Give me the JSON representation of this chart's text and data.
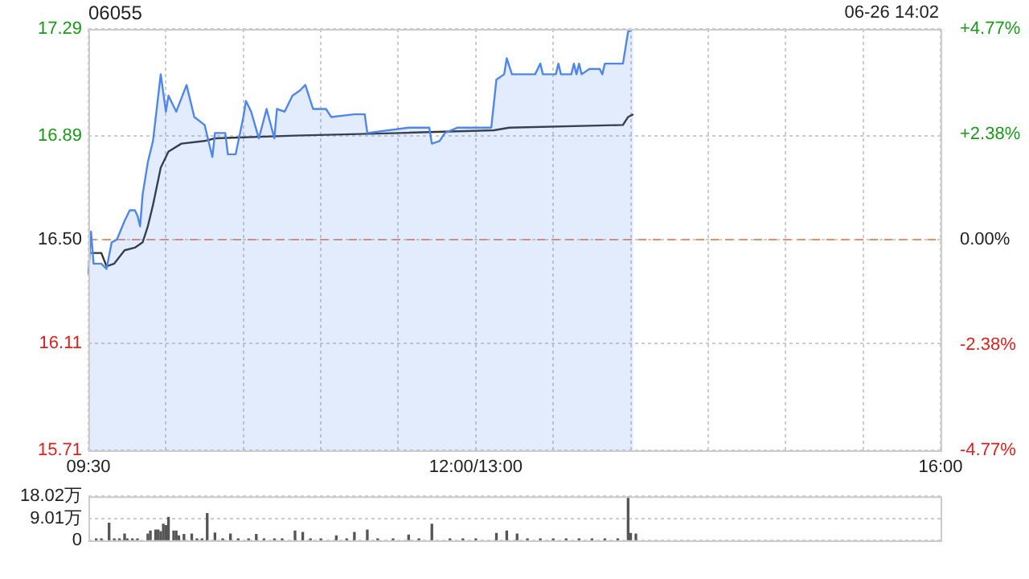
{
  "chart_data": [
    {
      "type": "line",
      "title": "06055",
      "annotations": [
        "06-26 14:02"
      ],
      "categories": [
        "09:30",
        null,
        null,
        null,
        null,
        null,
        null,
        null,
        null,
        null,
        null,
        null,
        null,
        null,
        null,
        null,
        null,
        null,
        null,
        null,
        null,
        null,
        null,
        null,
        null,
        null,
        null,
        null,
        null,
        null,
        null,
        null,
        null,
        null,
        null,
        null,
        null,
        null,
        null,
        null,
        null,
        null,
        null,
        null,
        null,
        null,
        null,
        null,
        null,
        null,
        null,
        null,
        null,
        null,
        null,
        null,
        null,
        null,
        null,
        null,
        null,
        null,
        null,
        null,
        null,
        null,
        null,
        null,
        null,
        null,
        null,
        null,
        null,
        null,
        null,
        null,
        null,
        null,
        null,
        null,
        null,
        null,
        null,
        null,
        null,
        null,
        null,
        null,
        null,
        null,
        null,
        null,
        null,
        null,
        null,
        null,
        null,
        null,
        null,
        null,
        null,
        null,
        null,
        null,
        null,
        null,
        null,
        null,
        null,
        null,
        null,
        null,
        null,
        null,
        null,
        null,
        null,
        null,
        null,
        null,
        null,
        null,
        null,
        null,
        null,
        null,
        null,
        null,
        null,
        null,
        null,
        null,
        null,
        null,
        null,
        null,
        null,
        null,
        null,
        null,
        null,
        null,
        null,
        null,
        null,
        null,
        null,
        null,
        null,
        null,
        "12:00/13:00",
        null,
        null,
        null,
        null,
        null,
        null,
        null,
        null,
        null,
        null,
        null,
        null,
        null,
        null,
        null,
        null,
        null,
        null,
        null,
        null,
        null,
        null,
        null,
        null,
        null,
        null,
        null,
        null,
        null,
        null,
        null,
        null,
        null,
        null,
        null,
        null,
        null,
        null,
        null,
        null,
        null,
        null,
        null,
        null,
        null,
        null,
        null,
        null,
        null,
        null,
        null,
        null,
        null,
        null,
        null,
        null,
        null,
        null,
        null,
        null,
        null,
        null,
        null,
        null,
        null,
        null,
        null,
        null,
        null,
        null,
        null,
        null,
        null,
        null,
        null,
        null,
        null,
        null,
        null,
        null,
        null,
        null,
        null,
        null,
        null,
        null,
        null,
        null,
        null,
        null,
        null,
        null,
        null,
        null,
        null,
        null,
        null,
        null,
        null,
        null,
        null,
        null,
        null,
        null,
        null,
        null,
        null,
        null,
        null,
        null,
        null,
        null,
        null,
        null,
        null,
        null,
        null,
        null,
        null,
        null,
        null,
        null,
        null,
        null,
        null,
        null,
        null,
        null,
        null,
        null,
        null,
        null,
        null,
        null,
        null,
        null,
        null,
        null,
        null,
        null,
        null,
        null,
        null,
        null,
        null,
        null,
        null,
        null,
        null,
        null,
        null,
        null,
        null,
        null,
        null,
        null,
        null,
        null,
        null,
        null,
        null,
        null,
        null,
        null,
        null,
        null,
        null,
        null,
        null,
        null,
        null,
        null,
        null,
        null,
        null,
        null,
        null,
        null,
        null,
        "16:00"
      ],
      "ylim": [
        15.71,
        17.29
      ],
      "yticks": [
        15.71,
        16.11,
        {
          "value": 16.5,
          "label": "16.50"
        },
        16.89,
        17.29
      ],
      "y2lim": [
        -4.77,
        4.77
      ],
      "y2ticks": [
        {
          "value": -4.77,
          "label": "-4.77%"
        },
        {
          "value": -2.38,
          "label": "-2.38%"
        },
        {
          "value": 0,
          "label": "0.00%"
        },
        {
          "value": 2.38,
          "label": "+2.38%"
        },
        {
          "value": 4.77,
          "label": "+4.77%"
        }
      ],
      "grid": true,
      "ref_lines": [
        {
          "axis": "y",
          "value": 16.5,
          "color": "#e8906a",
          "line_style": "dashed"
        }
      ],
      "series": [
        {
          "type": "area",
          "color": "#4f86ec",
          "values": [
            16.37,
            16.53,
            16.41,
            null,
            null,
            16.41,
            null,
            16.39,
            null,
            16.49,
            null,
            16.5,
            null,
            null,
            16.57,
            null,
            16.61,
            null,
            16.61,
            16.59,
            16.55,
            16.67,
            null,
            16.79,
            null,
            16.87,
            null,
            null,
            17.12,
            null,
            16.98,
            17.04,
            null,
            null,
            16.98,
            null,
            null,
            null,
            17.08,
            null,
            null,
            16.96,
            null,
            null,
            null,
            16.93,
            null,
            null,
            16.81,
            16.9,
            null,
            null,
            null,
            16.9,
            16.82,
            null,
            null,
            16.82,
            null,
            null,
            16.96,
            17.02,
            null,
            16.98,
            null,
            null,
            16.88,
            null,
            null,
            16.99,
            null,
            null,
            16.88,
            16.99,
            null,
            null,
            16.98,
            null,
            null,
            17.04,
            null,
            null,
            17.06,
            null,
            17.08,
            null,
            null,
            16.99,
            null,
            null,
            null,
            null,
            16.99,
            null,
            16.96,
            null,
            null,
            null,
            null,
            null,
            null,
            null,
            null,
            16.97,
            null,
            null,
            null,
            16.97,
            16.9,
            null,
            null,
            null,
            null,
            null,
            null,
            null,
            null,
            null,
            null,
            null,
            null,
            null,
            null,
            null,
            16.92,
            null,
            null,
            null,
            null,
            null,
            null,
            null,
            16.92,
            16.86,
            null,
            null,
            16.87,
            null,
            16.9,
            null,
            null,
            null,
            null,
            16.92,
            null,
            null,
            null,
            null,
            null,
            null,
            null,
            null,
            null,
            null,
            null,
            null,
            16.92,
            null,
            17.1,
            null,
            null,
            17.12,
            17.18,
            null,
            17.12,
            null,
            null,
            null,
            null,
            null,
            null,
            null,
            null,
            17.12,
            null,
            17.16,
            17.12,
            null,
            null,
            null,
            null,
            17.12,
            17.16,
            17.12,
            null,
            null,
            null,
            17.12,
            17.16,
            17.12,
            17.16,
            17.12,
            null,
            null,
            17.14,
            null,
            null,
            null,
            17.14,
            17.12,
            17.16,
            null,
            null,
            null,
            null,
            null,
            null,
            17.16,
            null,
            17.28,
            null,
            17.29,
            null,
            null,
            null,
            null,
            null,
            null,
            null,
            null,
            null,
            null,
            null,
            null,
            null,
            null,
            null,
            null,
            null,
            null,
            null,
            null,
            null,
            null,
            null,
            null,
            null,
            null,
            null,
            null,
            null,
            null,
            null,
            null,
            null,
            null,
            null,
            null,
            null,
            null,
            null,
            null,
            null,
            null,
            null,
            null,
            null,
            null,
            null,
            null,
            null,
            null,
            null,
            null,
            null,
            null,
            null,
            null,
            null,
            null,
            null,
            null,
            null,
            null,
            null,
            null,
            null,
            null,
            null,
            null,
            null,
            null,
            null,
            null,
            null,
            null,
            null,
            null,
            null,
            null,
            null,
            null,
            null,
            null,
            null,
            null,
            null,
            null,
            null,
            null,
            null,
            null,
            null,
            null,
            null,
            null,
            null,
            null,
            null,
            null,
            null,
            null,
            null,
            null,
            null,
            null,
            null,
            null,
            null,
            null,
            null,
            null,
            null,
            null,
            null,
            null,
            null,
            null,
            null,
            null,
            null
          ]
        },
        {
          "type": "line",
          "color": "#333333",
          "values": [
            null,
            16.45,
            null,
            null,
            null,
            16.45,
            null,
            16.4,
            null,
            null,
            16.41,
            null,
            null,
            null,
            16.46,
            null,
            null,
            null,
            16.47,
            null,
            null,
            16.49,
            null,
            16.55,
            null,
            16.63,
            null,
            null,
            16.77,
            null,
            null,
            16.83,
            null,
            null,
            null,
            null,
            16.86,
            null,
            null,
            null,
            null,
            null,
            null,
            null,
            null,
            16.87,
            null,
            null,
            null,
            16.88,
            null,
            null,
            null,
            null,
            null,
            null,
            null,
            null,
            null,
            null,
            null,
            null,
            null,
            null,
            null,
            null,
            null,
            null,
            null,
            null,
            null,
            null,
            null,
            null,
            null,
            null,
            null,
            null,
            null,
            null,
            16.89,
            null,
            null,
            null,
            null,
            null,
            null,
            null,
            null,
            null,
            null,
            null,
            null,
            null,
            null,
            null,
            null,
            null,
            null,
            null,
            null,
            null,
            null,
            null,
            null,
            null,
            null,
            null,
            null,
            null,
            null,
            null,
            null,
            null,
            null,
            null,
            null,
            null,
            null,
            null,
            null,
            16.9,
            null,
            null,
            null,
            null,
            null,
            null,
            null,
            null,
            null,
            null,
            null,
            null,
            null,
            null,
            null,
            null,
            null,
            null,
            null,
            null,
            null,
            null,
            null,
            null,
            null,
            null,
            null,
            null,
            null,
            null,
            null,
            null,
            null,
            null,
            null,
            16.91,
            null,
            null,
            null,
            null,
            null,
            16.92,
            null,
            null,
            null,
            null,
            null,
            null,
            null,
            null,
            null,
            null,
            null,
            null,
            null,
            null,
            null,
            null,
            null,
            null,
            null,
            null,
            null,
            null,
            null,
            null,
            null,
            null,
            null,
            null,
            null,
            null,
            null,
            null,
            null,
            null,
            null,
            null,
            null,
            null,
            null,
            null,
            null,
            null,
            null,
            16.93,
            null,
            16.96,
            null,
            16.97,
            null,
            null,
            null,
            null,
            null,
            null,
            null,
            null,
            null,
            null,
            null,
            null,
            null,
            null,
            null,
            null,
            null,
            null,
            null,
            null,
            null,
            null,
            null,
            null,
            null,
            null,
            null,
            null,
            null,
            null,
            null,
            null,
            null,
            null,
            null,
            null,
            null,
            null,
            null,
            null,
            null,
            null,
            null,
            null,
            null,
            null,
            null,
            null,
            null,
            null,
            null,
            null,
            null,
            null,
            null,
            null,
            null,
            null,
            null,
            null,
            null,
            null,
            null,
            null,
            null,
            null,
            null,
            null,
            null,
            null,
            null,
            null,
            null,
            null,
            null,
            null,
            null,
            null,
            null,
            null,
            null,
            null,
            null,
            null,
            null,
            null,
            null,
            null,
            null,
            null,
            null,
            null,
            null,
            null,
            null,
            null,
            null,
            null,
            null,
            null,
            null,
            null,
            null,
            null,
            null,
            null,
            null,
            null,
            null,
            null,
            null,
            null,
            null,
            null,
            null,
            null,
            null,
            null,
            null
          ]
        }
      ]
    },
    {
      "type": "bar",
      "color": "#555555",
      "categories": [
        null,
        null,
        null,
        null,
        null,
        null,
        null,
        null,
        null,
        null,
        null,
        null,
        null,
        null,
        null,
        null,
        null,
        null,
        null,
        null,
        null,
        null,
        null,
        null,
        null,
        null,
        null,
        null,
        null,
        null,
        null,
        null,
        null,
        null,
        null,
        null,
        null,
        null,
        null,
        null,
        null,
        null,
        null,
        null,
        null,
        null,
        null,
        null,
        null,
        null,
        null,
        null,
        null,
        null,
        null,
        null,
        null,
        null,
        null,
        null,
        null,
        null,
        null,
        null,
        null,
        null,
        null,
        null,
        null,
        null,
        null,
        null,
        null,
        null,
        null,
        null,
        null,
        null,
        null,
        null,
        null,
        null,
        null,
        null,
        null,
        null,
        null,
        null,
        null,
        null,
        null,
        null,
        null,
        null,
        null,
        null,
        null,
        null,
        null,
        null,
        null,
        null,
        null,
        null,
        null,
        null,
        null,
        null,
        null,
        null,
        null,
        null,
        null,
        null,
        null,
        null,
        null,
        null,
        null,
        null,
        null,
        null,
        null,
        null,
        null,
        null,
        null,
        null,
        null,
        null,
        null,
        null,
        null,
        null,
        null,
        null,
        null,
        null,
        null,
        null,
        null,
        null,
        null,
        null,
        null,
        null,
        null,
        null,
        null,
        null,
        null,
        null,
        null,
        null,
        null,
        null,
        null,
        null,
        null,
        null,
        null,
        null,
        null,
        null,
        null,
        null,
        null,
        null,
        null,
        null,
        null,
        null,
        null,
        null,
        null,
        null,
        null,
        null,
        null,
        null,
        null,
        null,
        null,
        null,
        null,
        null,
        null,
        null,
        null,
        null,
        null,
        null,
        null,
        null,
        null,
        null,
        null,
        null,
        null,
        null,
        null,
        null,
        null,
        null,
        null,
        null,
        null,
        null,
        null,
        null,
        null,
        null,
        null,
        null,
        null,
        null,
        null,
        null,
        null,
        null,
        null,
        null,
        null,
        null,
        null,
        null,
        null,
        null,
        null,
        null,
        null,
        null,
        null,
        null,
        null,
        null,
        null,
        null,
        null,
        null,
        null,
        null,
        null,
        null,
        null,
        null,
        null,
        null,
        null,
        null,
        null,
        null,
        null,
        null,
        null,
        null,
        null,
        null,
        null,
        null,
        null,
        null,
        null,
        null,
        null,
        null,
        null,
        null,
        null,
        null,
        null,
        null,
        null,
        null,
        null,
        null,
        null,
        null,
        null,
        null,
        null,
        null,
        null,
        null,
        null,
        null,
        null,
        null,
        null,
        null,
        null,
        null,
        null,
        null,
        null,
        null,
        null,
        null,
        null,
        null,
        null,
        null,
        null,
        null,
        null,
        null,
        null,
        null,
        null,
        null,
        null,
        null,
        null,
        null,
        null,
        null,
        null,
        null,
        null,
        null,
        null,
        null,
        null,
        null,
        null,
        null,
        null,
        null,
        null,
        null,
        null
      ],
      "ylim": [
        0,
        18.02
      ],
      "yticks": [
        0,
        {
          "value": 9.01,
          "label": "9.01万"
        },
        {
          "value": 18.02,
          "label": "18.02万"
        }
      ],
      "grid": "y",
      "tick_labels": "y",
      "values": [
        null,
        null,
        null,
        0.6,
        null,
        0.6,
        null,
        null,
        7.0,
        null,
        0.6,
        null,
        0.6,
        null,
        2.6,
        0.6,
        null,
        0.6,
        null,
        0.6,
        null,
        null,
        null,
        2.6,
        3.8,
        null,
        4.2,
        4.2,
        3.6,
        6.6,
        6.0,
        9.4,
        null,
        3.8,
        3.8,
        1.8,
        null,
        2.4,
        null,
        null,
        2.6,
        null,
        0.6,
        null,
        0.6,
        null,
        11.0,
        null,
        null,
        3.0,
        null,
        null,
        0.6,
        null,
        null,
        2.6,
        null,
        null,
        0.6,
        null,
        null,
        null,
        0.6,
        null,
        null,
        2.4,
        null,
        null,
        0.6,
        null,
        null,
        null,
        0.6,
        null,
        null,
        0.6,
        null,
        null,
        null,
        null,
        3.8,
        null,
        null,
        3.2,
        null,
        null,
        0.6,
        null,
        null,
        null,
        0.6,
        null,
        null,
        null,
        null,
        null,
        1.8,
        null,
        null,
        null,
        0.6,
        null,
        null,
        3.2,
        null,
        null,
        null,
        null,
        4.2,
        null,
        null,
        null,
        0.6,
        null,
        null,
        null,
        null,
        null,
        0.6,
        null,
        null,
        null,
        null,
        null,
        2.2,
        null,
        null,
        null,
        0.6,
        null,
        null,
        null,
        null,
        6.6,
        null,
        null,
        null,
        null,
        null,
        null,
        0.6,
        null,
        null,
        null,
        null,
        0.6,
        null,
        null,
        null,
        null,
        0.6,
        null,
        null,
        null,
        null,
        null,
        null,
        null,
        2.8,
        null,
        null,
        null,
        3.8,
        null,
        null,
        null,
        2.6,
        null,
        null,
        null,
        0.6,
        null,
        null,
        null,
        null,
        0.6,
        null,
        null,
        null,
        null,
        0.6,
        null,
        null,
        null,
        null,
        0.6,
        null,
        null,
        null,
        null,
        0.6,
        null,
        null,
        null,
        null,
        0.6,
        null,
        null,
        null,
        null,
        0.6,
        null,
        null,
        null,
        null,
        0.6,
        null,
        null,
        null,
        18.0,
        2.8,
        null,
        2.6,
        null,
        null,
        null,
        null,
        null,
        null,
        null,
        null,
        null,
        null,
        null,
        null,
        null,
        null,
        null,
        null,
        null,
        null,
        null,
        null,
        null,
        null,
        null,
        null,
        null,
        null,
        null,
        null,
        null,
        null,
        null,
        null,
        null,
        null,
        null,
        null,
        null,
        null,
        null,
        null,
        null,
        null,
        null,
        null,
        null,
        null,
        null,
        null,
        null,
        null,
        null,
        null,
        null,
        null,
        null,
        null,
        null,
        null,
        null,
        null,
        null,
        null,
        null,
        null,
        null,
        null,
        null,
        null,
        null,
        null,
        null,
        null,
        null,
        null,
        null,
        null,
        null,
        null,
        null,
        null,
        null,
        null,
        null,
        null,
        null,
        null,
        null,
        null,
        null,
        null,
        null,
        null,
        null,
        null,
        null,
        null,
        null,
        null,
        null,
        null,
        null,
        null,
        null,
        null,
        null,
        null,
        null,
        null,
        null,
        null,
        null,
        null,
        null,
        null,
        null,
        null,
        null,
        null
      ]
    }
  ]
}
